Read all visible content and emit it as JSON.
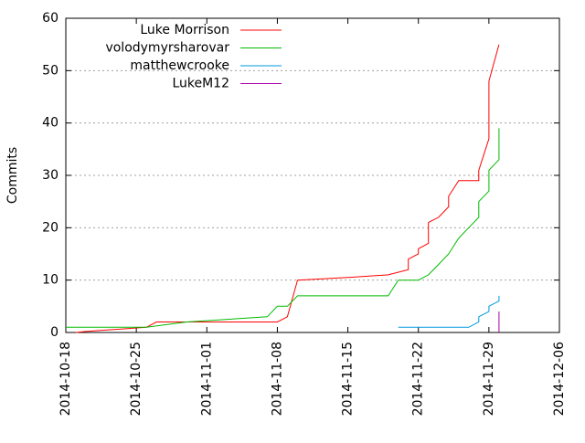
{
  "chart_data": {
    "type": "line",
    "title": "",
    "xlabel": "",
    "ylabel": "Commits",
    "ylim": [
      0,
      60
    ],
    "xlim": [
      "2014-10-18",
      "2014-12-06"
    ],
    "x_ticks": [
      "2014-10-18",
      "2014-10-25",
      "2014-11-01",
      "2014-11-08",
      "2014-11-15",
      "2014-11-22",
      "2014-11-29",
      "2014-12-06"
    ],
    "y_ticks": [
      0,
      10,
      20,
      30,
      40,
      50,
      60
    ],
    "grid": true,
    "legend_position": "top-left",
    "series": [
      {
        "name": "Luke Morrison",
        "color": "#ff0000",
        "points": [
          [
            "2014-10-19",
            0
          ],
          [
            "2014-10-20",
            0.2
          ],
          [
            "2014-10-26",
            1
          ],
          [
            "2014-10-27",
            2
          ],
          [
            "2014-11-08",
            2
          ],
          [
            "2014-11-09",
            3
          ],
          [
            "2014-11-10",
            10
          ],
          [
            "2014-11-15",
            10.5
          ],
          [
            "2014-11-19",
            11
          ],
          [
            "2014-11-21",
            12
          ],
          [
            "2014-11-21",
            14
          ],
          [
            "2014-11-22",
            15
          ],
          [
            "2014-11-22",
            16
          ],
          [
            "2014-11-23",
            17
          ],
          [
            "2014-11-23",
            21
          ],
          [
            "2014-11-24",
            22
          ],
          [
            "2014-11-25",
            24
          ],
          [
            "2014-11-25",
            26
          ],
          [
            "2014-11-26",
            29
          ],
          [
            "2014-11-28",
            29
          ],
          [
            "2014-11-28",
            31
          ],
          [
            "2014-11-29",
            37
          ],
          [
            "2014-11-29",
            45
          ],
          [
            "2014-11-29",
            47
          ],
          [
            "2014-11-29",
            48
          ],
          [
            "2014-11-30",
            55
          ]
        ]
      },
      {
        "name": "volodymyrsharovar",
        "color": "#00bb00",
        "points": [
          [
            "2014-10-18",
            1
          ],
          [
            "2014-10-26",
            1
          ],
          [
            "2014-10-30",
            2
          ],
          [
            "2014-11-07",
            3
          ],
          [
            "2014-11-08",
            5
          ],
          [
            "2014-11-09",
            5
          ],
          [
            "2014-11-10",
            7
          ],
          [
            "2014-11-19",
            7
          ],
          [
            "2014-11-20",
            10
          ],
          [
            "2014-11-22",
            10
          ],
          [
            "2014-11-23",
            11
          ],
          [
            "2014-11-24",
            13
          ],
          [
            "2014-11-25",
            15
          ],
          [
            "2014-11-26",
            18
          ],
          [
            "2014-11-27",
            20
          ],
          [
            "2014-11-28",
            22
          ],
          [
            "2014-11-28",
            25
          ],
          [
            "2014-11-29",
            27
          ],
          [
            "2014-11-29",
            31
          ],
          [
            "2014-11-30",
            33
          ],
          [
            "2014-11-30",
            39
          ]
        ]
      },
      {
        "name": "matthewcrooke",
        "color": "#0099dd",
        "points": [
          [
            "2014-11-20",
            1
          ],
          [
            "2014-11-27",
            1
          ],
          [
            "2014-11-28",
            2
          ],
          [
            "2014-11-28",
            3
          ],
          [
            "2014-11-29",
            4
          ],
          [
            "2014-11-29",
            5
          ],
          [
            "2014-11-30",
            6
          ],
          [
            "2014-11-30",
            7
          ]
        ]
      },
      {
        "name": "LukeM12",
        "color": "#aa00aa",
        "points": [
          [
            "2014-11-30",
            0
          ],
          [
            "2014-11-30",
            4
          ]
        ]
      }
    ]
  }
}
